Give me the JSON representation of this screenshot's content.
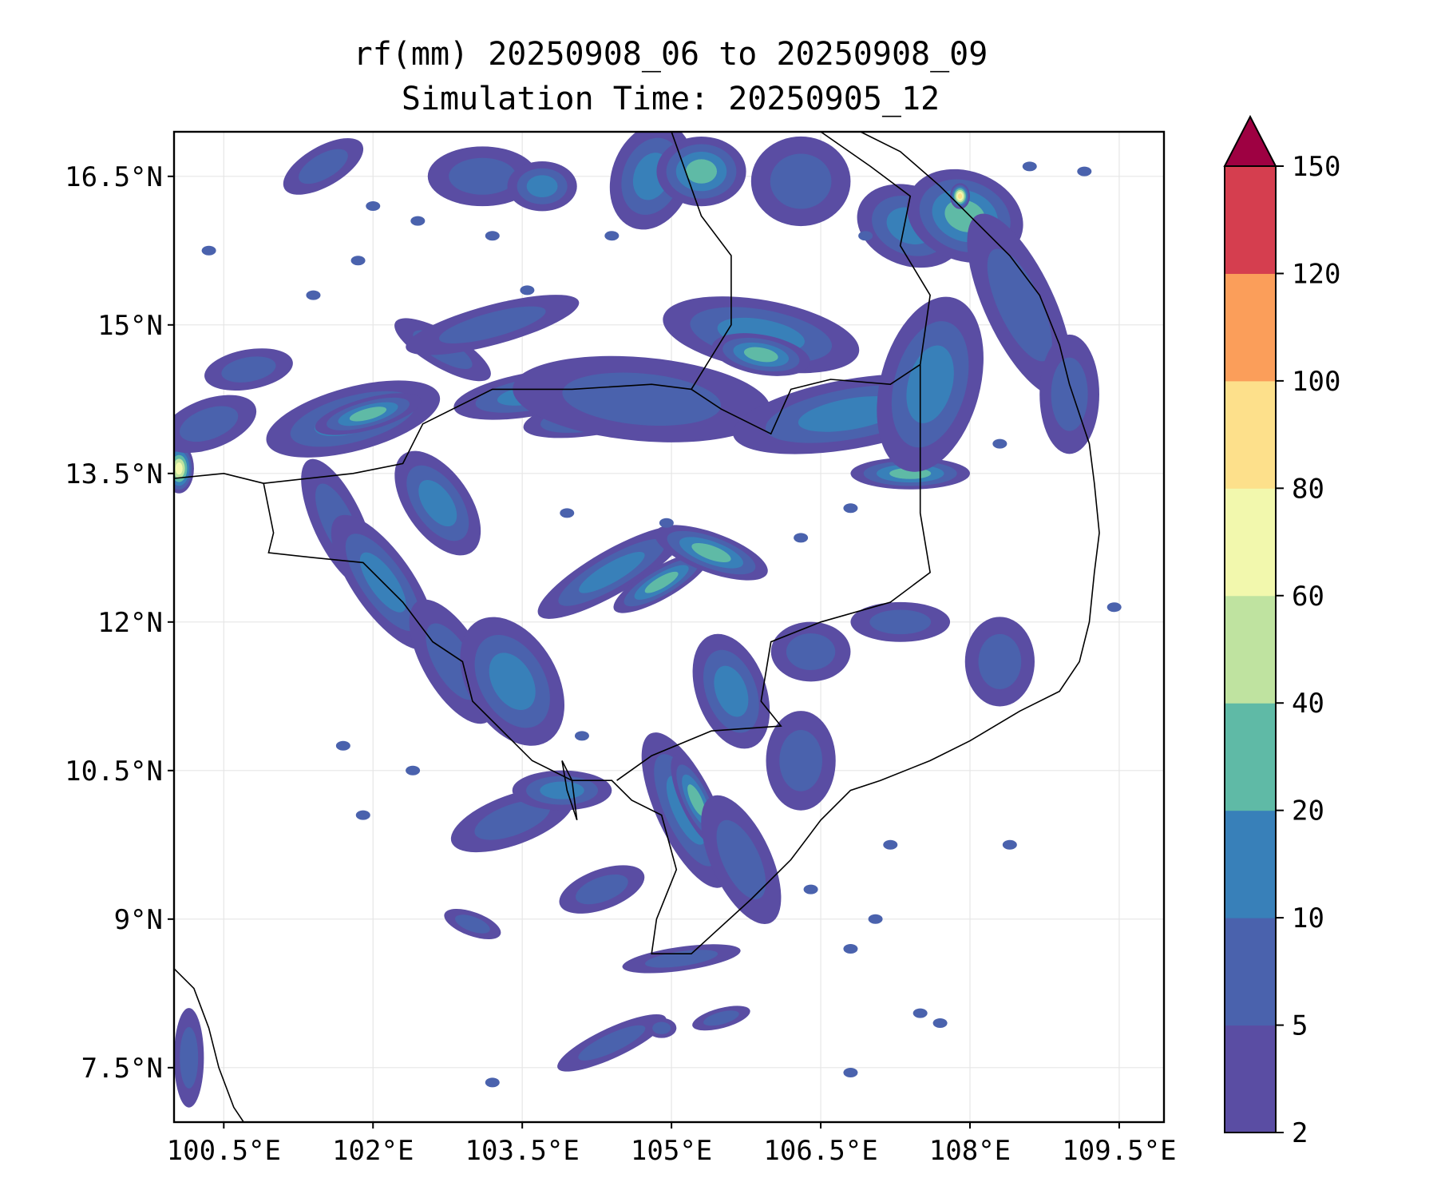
{
  "title": {
    "line1": "rf(mm) 20250908_06 to 20250908_09",
    "line2": "Simulation Time: 20250905_12"
  },
  "map": {
    "lon_range": [
      100.0,
      109.95
    ],
    "lat_range": [
      6.95,
      16.95
    ],
    "lon_ticks": [
      {
        "value": 100.5,
        "label": "100.5°E"
      },
      {
        "value": 102.0,
        "label": "102°E"
      },
      {
        "value": 103.5,
        "label": "103.5°E"
      },
      {
        "value": 105.0,
        "label": "105°E"
      },
      {
        "value": 106.5,
        "label": "106.5°E"
      },
      {
        "value": 108.0,
        "label": "108°E"
      },
      {
        "value": 109.5,
        "label": "109.5°E"
      }
    ],
    "lat_ticks": [
      {
        "value": 16.5,
        "label": "16.5°N"
      },
      {
        "value": 15.0,
        "label": "15°N"
      },
      {
        "value": 13.5,
        "label": "13.5°N"
      },
      {
        "value": 12.0,
        "label": "12°N"
      },
      {
        "value": 10.5,
        "label": "10.5°N"
      },
      {
        "value": 9.0,
        "label": "9°N"
      },
      {
        "value": 7.5,
        "label": "7.5°N"
      }
    ],
    "grid": true,
    "rain_cells": [
      {
        "lon": 100.05,
        "lat": 13.55,
        "rx": 0.15,
        "ry": 0.25,
        "rot": 0,
        "mm": 70
      },
      {
        "lon": 100.35,
        "lat": 14.0,
        "rx": 0.5,
        "ry": 0.25,
        "rot": -20,
        "mm": 8
      },
      {
        "lon": 100.75,
        "lat": 14.55,
        "rx": 0.45,
        "ry": 0.2,
        "rot": -10,
        "mm": 6
      },
      {
        "lon": 101.8,
        "lat": 14.05,
        "rx": 0.9,
        "ry": 0.32,
        "rot": -15,
        "mm": 12
      },
      {
        "lon": 101.95,
        "lat": 14.1,
        "rx": 0.55,
        "ry": 0.16,
        "rot": -15,
        "mm": 25
      },
      {
        "lon": 102.7,
        "lat": 14.75,
        "rx": 0.55,
        "ry": 0.18,
        "rot": 30,
        "mm": 8
      },
      {
        "lon": 103.2,
        "lat": 15.0,
        "rx": 0.9,
        "ry": 0.2,
        "rot": -15,
        "mm": 7
      },
      {
        "lon": 103.6,
        "lat": 14.3,
        "rx": 0.8,
        "ry": 0.22,
        "rot": -10,
        "mm": 14
      },
      {
        "lon": 104.3,
        "lat": 14.1,
        "rx": 0.8,
        "ry": 0.2,
        "rot": -10,
        "mm": 24
      },
      {
        "lon": 104.7,
        "lat": 14.25,
        "rx": 1.3,
        "ry": 0.42,
        "rot": 5,
        "mm": 9
      },
      {
        "lon": 105.9,
        "lat": 14.9,
        "rx": 1.0,
        "ry": 0.35,
        "rot": 10,
        "mm": 12
      },
      {
        "lon": 105.9,
        "lat": 14.7,
        "rx": 0.5,
        "ry": 0.2,
        "rot": 10,
        "mm": 25
      },
      {
        "lon": 106.8,
        "lat": 14.1,
        "rx": 1.2,
        "ry": 0.35,
        "rot": -10,
        "mm": 14
      },
      {
        "lon": 107.4,
        "lat": 13.5,
        "rx": 0.6,
        "ry": 0.16,
        "rot": 0,
        "mm": 25
      },
      {
        "lon": 107.6,
        "lat": 14.4,
        "rx": 0.5,
        "ry": 0.9,
        "rot": 15,
        "mm": 10
      },
      {
        "lon": 107.4,
        "lat": 16.0,
        "rx": 0.55,
        "ry": 0.4,
        "rot": 20,
        "mm": 14
      },
      {
        "lon": 107.95,
        "lat": 16.1,
        "rx": 0.6,
        "ry": 0.45,
        "rot": 20,
        "mm": 22
      },
      {
        "lon": 107.9,
        "lat": 16.3,
        "rx": 0.1,
        "ry": 0.13,
        "rot": 0,
        "mm": 90
      },
      {
        "lon": 108.5,
        "lat": 15.2,
        "rx": 0.35,
        "ry": 1.0,
        "rot": -25,
        "mm": 8
      },
      {
        "lon": 109.0,
        "lat": 14.3,
        "rx": 0.3,
        "ry": 0.6,
        "rot": 0,
        "mm": 9
      },
      {
        "lon": 104.8,
        "lat": 16.5,
        "rx": 0.4,
        "ry": 0.55,
        "rot": 20,
        "mm": 12
      },
      {
        "lon": 105.3,
        "lat": 16.55,
        "rx": 0.45,
        "ry": 0.35,
        "rot": 0,
        "mm": 25
      },
      {
        "lon": 106.3,
        "lat": 16.45,
        "rx": 0.5,
        "ry": 0.45,
        "rot": 0,
        "mm": 8
      },
      {
        "lon": 103.1,
        "lat": 16.5,
        "rx": 0.55,
        "ry": 0.3,
        "rot": 0,
        "mm": 7
      },
      {
        "lon": 103.7,
        "lat": 16.4,
        "rx": 0.35,
        "ry": 0.25,
        "rot": 0,
        "mm": 14
      },
      {
        "lon": 101.5,
        "lat": 16.6,
        "rx": 0.45,
        "ry": 0.2,
        "rot": -30,
        "mm": 6
      },
      {
        "lon": 101.65,
        "lat": 13.0,
        "rx": 0.25,
        "ry": 0.7,
        "rot": -25,
        "mm": 7
      },
      {
        "lon": 102.1,
        "lat": 12.4,
        "rx": 0.3,
        "ry": 0.8,
        "rot": -35,
        "mm": 12
      },
      {
        "lon": 102.65,
        "lat": 13.2,
        "rx": 0.32,
        "ry": 0.6,
        "rot": -35,
        "mm": 16
      },
      {
        "lon": 102.8,
        "lat": 11.6,
        "rx": 0.3,
        "ry": 0.7,
        "rot": -30,
        "mm": 9
      },
      {
        "lon": 103.4,
        "lat": 11.4,
        "rx": 0.45,
        "ry": 0.7,
        "rot": -30,
        "mm": 12
      },
      {
        "lon": 104.4,
        "lat": 12.5,
        "rx": 0.85,
        "ry": 0.22,
        "rot": -30,
        "mm": 10
      },
      {
        "lon": 104.9,
        "lat": 12.4,
        "rx": 0.55,
        "ry": 0.16,
        "rot": -30,
        "mm": 25
      },
      {
        "lon": 105.4,
        "lat": 12.7,
        "rx": 0.6,
        "ry": 0.2,
        "rot": 20,
        "mm": 22
      },
      {
        "lon": 105.6,
        "lat": 11.3,
        "rx": 0.35,
        "ry": 0.6,
        "rot": -20,
        "mm": 12
      },
      {
        "lon": 105.15,
        "lat": 10.1,
        "rx": 0.3,
        "ry": 0.85,
        "rot": -25,
        "mm": 10
      },
      {
        "lon": 105.25,
        "lat": 10.2,
        "rx": 0.16,
        "ry": 0.5,
        "rot": -25,
        "mm": 25
      },
      {
        "lon": 105.7,
        "lat": 9.6,
        "rx": 0.3,
        "ry": 0.7,
        "rot": -25,
        "mm": 8
      },
      {
        "lon": 106.3,
        "lat": 10.6,
        "rx": 0.35,
        "ry": 0.5,
        "rot": 0,
        "mm": 7
      },
      {
        "lon": 106.4,
        "lat": 11.7,
        "rx": 0.4,
        "ry": 0.3,
        "rot": 0,
        "mm": 8
      },
      {
        "lon": 107.3,
        "lat": 12.0,
        "rx": 0.5,
        "ry": 0.2,
        "rot": 0,
        "mm": 6
      },
      {
        "lon": 108.3,
        "lat": 11.6,
        "rx": 0.35,
        "ry": 0.45,
        "rot": 0,
        "mm": 7
      },
      {
        "lon": 103.4,
        "lat": 10.0,
        "rx": 0.65,
        "ry": 0.25,
        "rot": -20,
        "mm": 9
      },
      {
        "lon": 103.9,
        "lat": 10.3,
        "rx": 0.5,
        "ry": 0.2,
        "rot": 0,
        "mm": 12
      },
      {
        "lon": 104.3,
        "lat": 9.3,
        "rx": 0.45,
        "ry": 0.2,
        "rot": -20,
        "mm": 8
      },
      {
        "lon": 105.1,
        "lat": 8.6,
        "rx": 0.6,
        "ry": 0.12,
        "rot": -8,
        "mm": 7
      },
      {
        "lon": 104.4,
        "lat": 7.75,
        "rx": 0.6,
        "ry": 0.15,
        "rot": -25,
        "mm": 7
      },
      {
        "lon": 105.5,
        "lat": 8.0,
        "rx": 0.3,
        "ry": 0.1,
        "rot": -15,
        "mm": 6
      },
      {
        "lon": 104.9,
        "lat": 7.9,
        "rx": 0.15,
        "ry": 0.1,
        "rot": 0,
        "mm": 5
      },
      {
        "lon": 100.15,
        "lat": 7.6,
        "rx": 0.15,
        "ry": 0.5,
        "rot": 0,
        "mm": 7
      },
      {
        "lon": 103.0,
        "lat": 8.95,
        "rx": 0.3,
        "ry": 0.12,
        "rot": 20,
        "mm": 6
      }
    ],
    "rain_specks": [
      [
        103.2,
        15.9
      ],
      [
        103.55,
        15.35
      ],
      [
        104.4,
        15.9
      ],
      [
        106.95,
        15.9
      ],
      [
        106.8,
        13.15
      ],
      [
        103.95,
        13.1
      ],
      [
        104.95,
        13.0
      ],
      [
        106.3,
        12.85
      ],
      [
        101.7,
        10.75
      ],
      [
        101.9,
        10.05
      ],
      [
        102.4,
        10.5
      ],
      [
        104.1,
        10.85
      ],
      [
        106.4,
        9.3
      ],
      [
        107.05,
        9.0
      ],
      [
        107.2,
        9.75
      ],
      [
        108.4,
        9.75
      ],
      [
        106.8,
        8.7
      ],
      [
        107.5,
        8.05
      ],
      [
        103.2,
        7.35
      ],
      [
        106.8,
        7.45
      ],
      [
        107.7,
        7.95
      ],
      [
        101.85,
        15.65
      ],
      [
        101.4,
        15.3
      ],
      [
        102.45,
        16.05
      ],
      [
        108.6,
        16.6
      ],
      [
        109.15,
        16.55
      ],
      [
        109.45,
        12.15
      ],
      [
        102.0,
        16.2
      ],
      [
        100.35,
        15.75
      ],
      [
        108.3,
        13.8
      ]
    ],
    "colorbar": {
      "levels": [
        2,
        5,
        10,
        20,
        40,
        60,
        80,
        100,
        120,
        150
      ],
      "tick_labels": [
        "2",
        "5",
        "10",
        "20",
        "40",
        "60",
        "80",
        "100",
        "120",
        "150"
      ],
      "colors": [
        "#5a4da3",
        "#4a62ad",
        "#3880b9",
        "#5fbaa6",
        "#bfe3a0",
        "#f2f8ad",
        "#fde08b",
        "#fb9e5a",
        "#d53e4f"
      ],
      "extend_color": "#9e0142",
      "extend": "max"
    }
  }
}
